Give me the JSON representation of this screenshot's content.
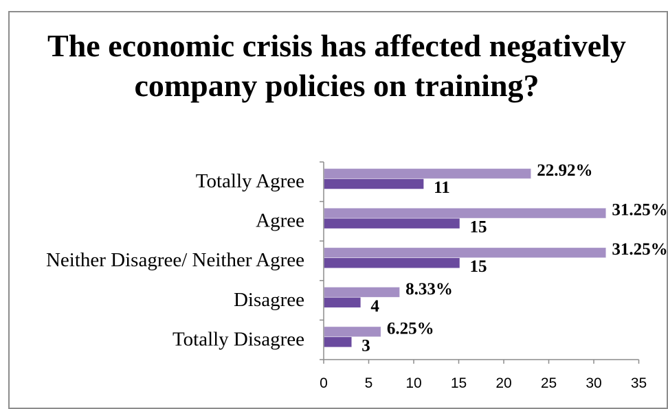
{
  "chart_data": {
    "type": "bar",
    "orientation": "horizontal",
    "title": "The economic crisis has affected negatively company policies on training?",
    "categories": [
      "Totally Agree",
      "Agree",
      "Neither Disagree/ Neither Agree",
      "Disagree",
      "Totally Disagree"
    ],
    "series": [
      {
        "values": [
          22.92,
          31.25,
          31.25,
          8.33,
          6.25
        ],
        "labels": [
          "22.92%",
          "31.25%",
          "31.25%",
          "8.33%",
          "6.25%"
        ],
        "color": "#a48fc4"
      },
      {
        "values": [
          11,
          15,
          15,
          4,
          3
        ],
        "labels": [
          "11",
          "15",
          "15",
          "4",
          "3"
        ],
        "color": "#6a4a9e"
      }
    ],
    "xlim": [
      0,
      35
    ],
    "xticks": [
      0,
      5,
      10,
      15,
      20,
      25,
      30,
      35
    ],
    "xlabel": "",
    "ylabel": "",
    "grid": false,
    "legend": "none"
  }
}
